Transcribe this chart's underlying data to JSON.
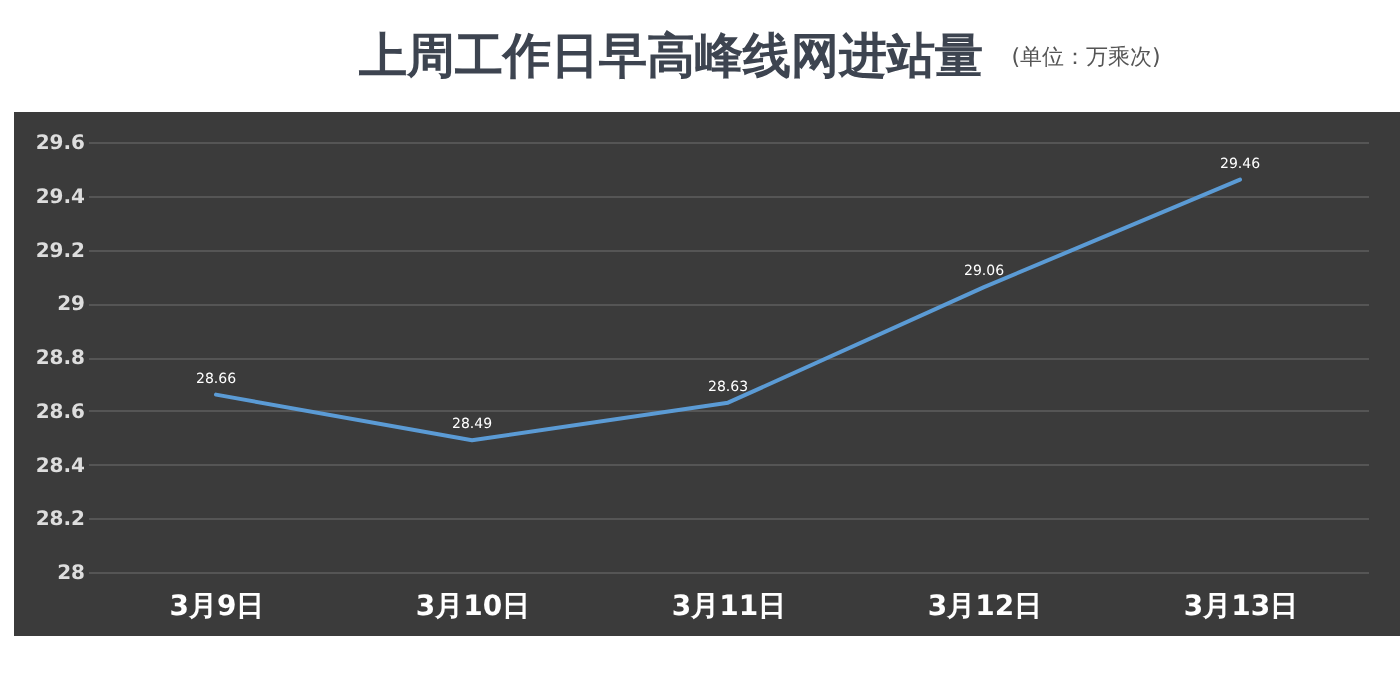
{
  "chart_data": {
    "type": "line",
    "title": "上周工作日早高峰线网进站量",
    "subtitle": "(单位：万乘次)",
    "categories": [
      "3月9日",
      "3月10日",
      "3月11日",
      "3月12日",
      "3月13日"
    ],
    "series": [
      {
        "color": "#5b9bd5",
        "values": [
          28.66,
          28.49,
          28.63,
          29.06,
          29.46
        ]
      }
    ],
    "ylim": [
      28,
      29.6
    ],
    "yticks": [
      28,
      28.2,
      28.4,
      28.6,
      28.8,
      29,
      29.2,
      29.4,
      29.6
    ],
    "grid": "y",
    "data_labels": true
  }
}
